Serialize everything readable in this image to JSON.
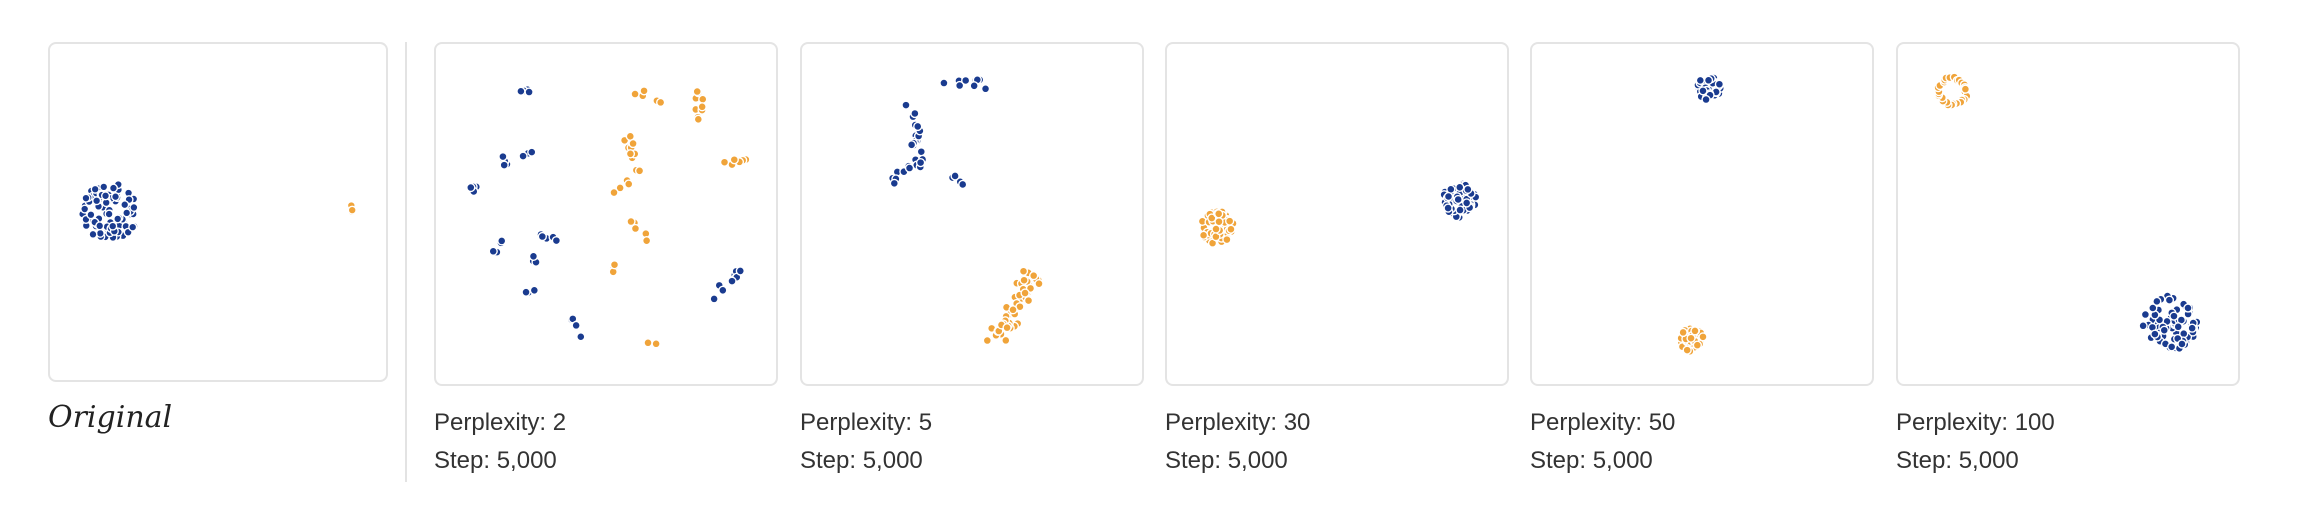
{
  "colors": {
    "blue": "#1a3b8f",
    "orange": "#f0a43a"
  },
  "original_label": "Original",
  "chart_data": [
    {
      "type": "scatter",
      "title": "Original",
      "perplexity": "",
      "step": "",
      "clusters": [
        {
          "series": "blue",
          "cx": 0.18,
          "cy": 0.5,
          "r": 0.085,
          "n": 90,
          "shape": "blob"
        },
        {
          "series": "orange",
          "cx": 0.9,
          "cy": 0.49,
          "r": 0.012,
          "n": 6,
          "shape": "blob"
        }
      ]
    },
    {
      "type": "scatter",
      "perplexity": "Perplexity: 2",
      "step": "Step: 5,000",
      "clusters": [
        {
          "series": "blue",
          "cx": 0.26,
          "cy": 0.14,
          "r": 0.03,
          "n": 4,
          "shape": "streak"
        },
        {
          "series": "blue",
          "cx": 0.2,
          "cy": 0.33,
          "r": 0.03,
          "n": 5,
          "shape": "streak"
        },
        {
          "series": "blue",
          "cx": 0.27,
          "cy": 0.32,
          "r": 0.02,
          "n": 3,
          "shape": "streak"
        },
        {
          "series": "blue",
          "cx": 0.12,
          "cy": 0.43,
          "r": 0.03,
          "n": 4,
          "shape": "streak"
        },
        {
          "series": "blue",
          "cx": 0.18,
          "cy": 0.6,
          "r": 0.025,
          "n": 4,
          "shape": "streak"
        },
        {
          "series": "blue",
          "cx": 0.33,
          "cy": 0.57,
          "r": 0.03,
          "n": 5,
          "shape": "streak"
        },
        {
          "series": "blue",
          "cx": 0.29,
          "cy": 0.64,
          "r": 0.02,
          "n": 3,
          "shape": "streak"
        },
        {
          "series": "blue",
          "cx": 0.27,
          "cy": 0.73,
          "r": 0.025,
          "n": 4,
          "shape": "streak"
        },
        {
          "series": "blue",
          "cx": 0.42,
          "cy": 0.84,
          "r": 0.04,
          "n": 6,
          "shape": "streak"
        },
        {
          "series": "blue",
          "cx": 0.86,
          "cy": 0.7,
          "r": 0.05,
          "n": 9,
          "shape": "streak"
        },
        {
          "series": "orange",
          "cx": 0.62,
          "cy": 0.15,
          "r": 0.04,
          "n": 5,
          "shape": "streak"
        },
        {
          "series": "orange",
          "cx": 0.77,
          "cy": 0.2,
          "r": 0.06,
          "n": 10,
          "shape": "streak"
        },
        {
          "series": "orange",
          "cx": 0.88,
          "cy": 0.35,
          "r": 0.04,
          "n": 6,
          "shape": "streak"
        },
        {
          "series": "orange",
          "cx": 0.58,
          "cy": 0.32,
          "r": 0.05,
          "n": 10,
          "shape": "streak"
        },
        {
          "series": "orange",
          "cx": 0.54,
          "cy": 0.42,
          "r": 0.03,
          "n": 6,
          "shape": "streak"
        },
        {
          "series": "orange",
          "cx": 0.6,
          "cy": 0.55,
          "r": 0.04,
          "n": 6,
          "shape": "streak"
        },
        {
          "series": "orange",
          "cx": 0.52,
          "cy": 0.66,
          "r": 0.02,
          "n": 4,
          "shape": "streak"
        },
        {
          "series": "orange",
          "cx": 0.63,
          "cy": 0.88,
          "r": 0.015,
          "n": 3,
          "shape": "streak"
        }
      ]
    },
    {
      "type": "scatter",
      "perplexity": "Perplexity: 5",
      "step": "Step: 5,000",
      "clusters": [
        {
          "series": "blue",
          "cx": 0.48,
          "cy": 0.12,
          "r": 0.06,
          "n": 10,
          "shape": "streak"
        },
        {
          "series": "blue",
          "cx": 0.33,
          "cy": 0.25,
          "r": 0.07,
          "n": 14,
          "shape": "streak"
        },
        {
          "series": "blue",
          "cx": 0.31,
          "cy": 0.37,
          "r": 0.06,
          "n": 12,
          "shape": "streak"
        },
        {
          "series": "blue",
          "cx": 0.46,
          "cy": 0.4,
          "r": 0.02,
          "n": 4,
          "shape": "streak"
        },
        {
          "series": "orange",
          "cx": 0.63,
          "cy": 0.77,
          "r": 0.12,
          "n": 50,
          "shape": "streak"
        }
      ]
    },
    {
      "type": "scatter",
      "perplexity": "Perplexity: 30",
      "step": "Step: 5,000",
      "clusters": [
        {
          "series": "orange",
          "cx": 0.15,
          "cy": 0.54,
          "r": 0.05,
          "n": 60,
          "shape": "blob"
        },
        {
          "series": "blue",
          "cx": 0.86,
          "cy": 0.46,
          "r": 0.05,
          "n": 60,
          "shape": "blob"
        }
      ]
    },
    {
      "type": "scatter",
      "perplexity": "Perplexity: 50",
      "step": "Step: 5,000",
      "clusters": [
        {
          "series": "blue",
          "cx": 0.52,
          "cy": 0.13,
          "r": 0.035,
          "n": 45,
          "shape": "blob"
        },
        {
          "series": "orange",
          "cx": 0.47,
          "cy": 0.87,
          "r": 0.035,
          "n": 40,
          "shape": "blob"
        }
      ]
    },
    {
      "type": "scatter",
      "perplexity": "Perplexity: 100",
      "step": "Step: 5,000",
      "clusters": [
        {
          "series": "orange",
          "cx": 0.16,
          "cy": 0.14,
          "r": 0.045,
          "n": 28,
          "shape": "ring"
        },
        {
          "series": "blue",
          "cx": 0.8,
          "cy": 0.82,
          "r": 0.08,
          "n": 80,
          "shape": "blob"
        }
      ]
    }
  ]
}
